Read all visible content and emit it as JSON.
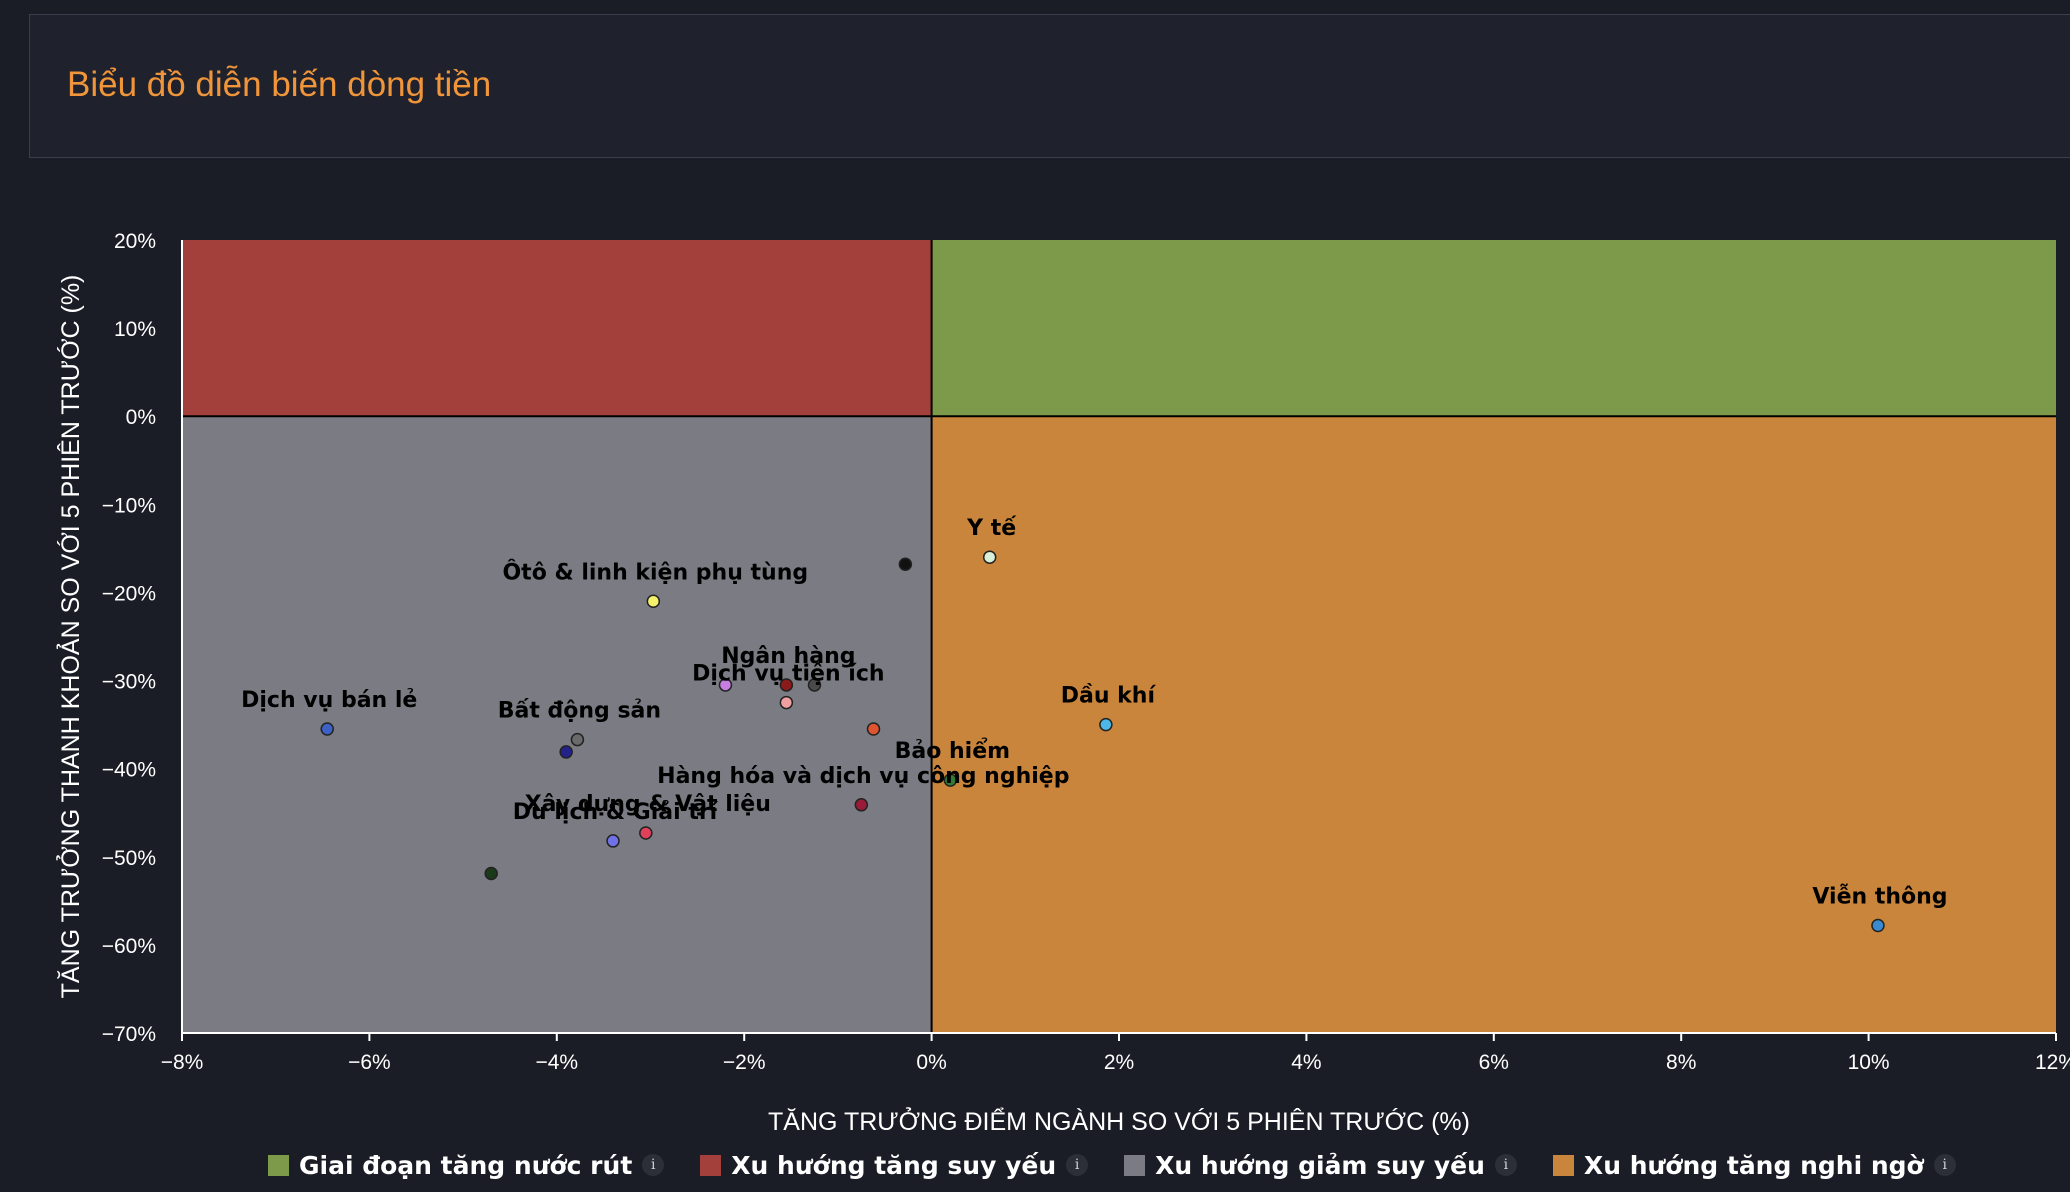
{
  "header": {
    "title": "Biểu đồ diễn biến dòng tiền"
  },
  "legend": [
    {
      "label": "Giai đoạn tăng nước rút",
      "color": "#7d9a4a",
      "icon": "info-icon"
    },
    {
      "label": "Xu hướng tăng suy yếu",
      "color": "#a3403c",
      "icon": "info-icon"
    },
    {
      "label": "Xu hướng giảm suy yếu",
      "color": "#7b7c83",
      "icon": "info-icon"
    },
    {
      "label": "Xu hướng tăng nghi ngờ",
      "color": "#c9853b",
      "icon": "info-icon"
    }
  ],
  "chart_data": {
    "type": "scatter",
    "xlabel": "TĂNG TRƯỞNG ĐIỂM NGÀNH SO VỚI 5 PHIÊN TRƯỚC (%)",
    "ylabel": "TĂNG TRƯỞNG THANH KHOẢN SO VỚI 5 PHIÊN TRƯỚC (%)",
    "xlim": [
      -8,
      12
    ],
    "ylim": [
      -70,
      20
    ],
    "xticks": [
      -8,
      -6,
      -4,
      -2,
      0,
      2,
      4,
      6,
      8,
      10,
      12
    ],
    "yticks": [
      20,
      10,
      0,
      -10,
      -20,
      -30,
      -40,
      -50,
      -60,
      -70
    ],
    "xtick_labels": [
      "−8%",
      "−6%",
      "−4%",
      "−2%",
      "0%",
      "2%",
      "4%",
      "6%",
      "8%",
      "10%",
      "12%"
    ],
    "ytick_labels": [
      "20%",
      "10%",
      "0%",
      "−10%",
      "−20%",
      "−30%",
      "−40%",
      "−50%",
      "−60%",
      "−70%"
    ],
    "quadrants": [
      {
        "name": "Giai đoạn tăng nước rút",
        "color": "#7d9a4a",
        "x": [
          0,
          12
        ],
        "y": [
          0,
          20
        ]
      },
      {
        "name": "Xu hướng tăng suy yếu",
        "color": "#a3403c",
        "x": [
          -8,
          0
        ],
        "y": [
          0,
          20
        ]
      },
      {
        "name": "Xu hướng giảm suy yếu",
        "color": "#7b7c83",
        "x": [
          -8,
          0
        ],
        "y": [
          -70,
          0
        ]
      },
      {
        "name": "Xu hướng tăng nghi ngờ",
        "color": "#c9853b",
        "x": [
          0,
          12
        ],
        "y": [
          -70,
          0
        ]
      }
    ],
    "points": [
      {
        "label": "Y tế",
        "x": 0.62,
        "y": -16.0,
        "color": "#d8f0d8"
      },
      {
        "label": "",
        "x": -0.28,
        "y": -16.8,
        "color": "#111111"
      },
      {
        "label": "Ôtô & linh kiện phụ tùng",
        "x": -2.97,
        "y": -21.0,
        "color": "#f5f06a"
      },
      {
        "label": "Ngân hàng",
        "x": -1.55,
        "y": -30.5,
        "color": "#8b1a1a"
      },
      {
        "label": "",
        "x": -2.2,
        "y": -30.5,
        "color": "#c77ee0"
      },
      {
        "label": "",
        "x": -1.25,
        "y": -30.5,
        "color": "#4a4a4a"
      },
      {
        "label": "Dịch vụ tiện ích",
        "x": -1.55,
        "y": -32.5,
        "color": "#f0a0a0"
      },
      {
        "label": "",
        "x": -0.62,
        "y": -35.5,
        "color": "#e05530"
      },
      {
        "label": "Dịch vụ bán lẻ",
        "x": -6.45,
        "y": -35.5,
        "color": "#3b62c4"
      },
      {
        "label": "Bất động sản",
        "x": -3.78,
        "y": -36.7,
        "color": "#6a6a6a"
      },
      {
        "label": "",
        "x": -3.9,
        "y": -38.1,
        "color": "#22228a"
      },
      {
        "label": "Dầu khí",
        "x": 1.86,
        "y": -35.0,
        "color": "#4db8e8"
      },
      {
        "label": "Bảo hiểm",
        "x": 0.2,
        "y": -41.3,
        "color": "#2e7d32"
      },
      {
        "label": "Hàng hóa và dịch vụ công nghiệp",
        "x": -0.75,
        "y": -44.1,
        "color": "#9a1a3a"
      },
      {
        "label": "Xây dựng & Vật liệu",
        "x": -3.05,
        "y": -47.3,
        "color": "#e0405a"
      },
      {
        "label": "Du lịch & Giải trí",
        "x": -3.4,
        "y": -48.2,
        "color": "#7070e8"
      },
      {
        "label": "",
        "x": -4.7,
        "y": -51.9,
        "color": "#1a3a1a"
      },
      {
        "label": "Viễn thông",
        "x": 10.1,
        "y": -57.8,
        "color": "#3a8ad0"
      }
    ]
  }
}
